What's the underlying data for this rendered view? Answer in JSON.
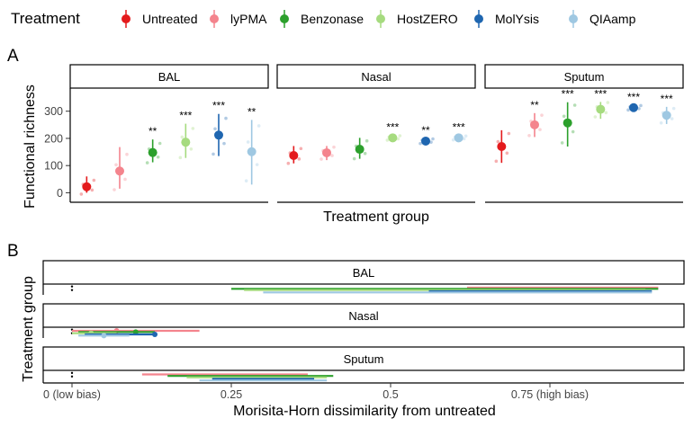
{
  "legend": {
    "title": "Treatment",
    "items": [
      {
        "label": "Untreated",
        "color": "#E41A1C"
      },
      {
        "label": "lyPMA",
        "color": "#F4848D"
      },
      {
        "label": "Benzonase",
        "color": "#2CA02C"
      },
      {
        "label": "HostZERO",
        "color": "#A6DB7F"
      },
      {
        "label": "MolYsis",
        "color": "#1F66B0"
      },
      {
        "label": "QIAamp",
        "color": "#9FC8E2"
      }
    ]
  },
  "panel_a": {
    "tag": "A",
    "ylabel": "Functional richness",
    "xlabel": "Treatment group"
  },
  "panel_b": {
    "tag": "B",
    "ylabel": "Treatment group",
    "xlabel": "Morisita-Horn dissimilarity from untreated"
  },
  "chart_data": [
    {
      "type": "scatter",
      "panel": "A",
      "facets": [
        "BAL",
        "Nasal",
        "Sputum"
      ],
      "categories": [
        "Untreated",
        "lyPMA",
        "Benzonase",
        "HostZERO",
        "MolYsis",
        "QIAamp"
      ],
      "ylabel": "Functional richness",
      "xlabel": "Treatment group",
      "yticks": [
        0,
        100,
        200,
        300
      ],
      "ylim": [
        -35,
        385
      ],
      "x_tick_labels_shown": false,
      "series": [
        {
          "facet": "BAL",
          "means": [
            22,
            80,
            148,
            186,
            212,
            151
          ],
          "lower": [
            0,
            15,
            112,
            128,
            135,
            30
          ],
          "upper": [
            60,
            168,
            196,
            254,
            290,
            268
          ],
          "signif": [
            "",
            "",
            "**",
            "***",
            "***",
            "**"
          ]
        },
        {
          "facet": "Nasal",
          "means": [
            137,
            147,
            160,
            202,
            190,
            202
          ],
          "lower": [
            108,
            120,
            125,
            193,
            180,
            195
          ],
          "upper": [
            172,
            172,
            202,
            212,
            200,
            212
          ],
          "signif": [
            "",
            "",
            "",
            "***",
            "**",
            "***"
          ]
        },
        {
          "facet": "Sputum",
          "means": [
            170,
            250,
            257,
            307,
            313,
            285
          ],
          "lower": [
            110,
            205,
            170,
            272,
            303,
            253
          ],
          "upper": [
            230,
            293,
            333,
            334,
            322,
            316
          ],
          "signif": [
            "",
            "**",
            "***",
            "***",
            "***",
            "***"
          ]
        }
      ]
    },
    {
      "type": "bar",
      "panel": "B",
      "facets": [
        "BAL",
        "Nasal",
        "Sputum"
      ],
      "categories": [
        "Untreated",
        "lyPMA",
        "Benzonase",
        "HostZERO",
        "MolYsis",
        "QIAamp"
      ],
      "xlabel": "Morisita-Horn dissimilarity from untreated",
      "ylabel": "Treatment group",
      "xlim": [
        0,
        1
      ],
      "xticks": [
        0,
        0.25,
        0.5,
        0.75
      ],
      "xtick_labels": [
        "0 (low bias)",
        "0.25",
        "0.5",
        "0.75 (high bias)"
      ],
      "series": [
        {
          "facet": "BAL",
          "means": [
            0,
            0.82,
            0.74,
            0.78,
            0.76,
            0.76
          ],
          "lower": [
            0,
            0.62,
            0.25,
            0.27,
            0.56,
            0.3
          ],
          "upper": [
            0,
            0.92,
            0.92,
            0.9,
            0.91,
            0.91
          ]
        },
        {
          "facet": "Nasal",
          "means": [
            0,
            0.07,
            0.1,
            0.03,
            0.13,
            0.05
          ],
          "lower": [
            0,
            0.0,
            0.01,
            0.0,
            0.02,
            0.01
          ],
          "upper": [
            0,
            0.2,
            0.13,
            0.07,
            0.13,
            0.09
          ]
        },
        {
          "facet": "Sputum",
          "means": [
            0,
            0.25,
            0.28,
            0.27,
            0.29,
            0.28
          ],
          "lower": [
            0,
            0.11,
            0.15,
            0.18,
            0.22,
            0.2
          ],
          "upper": [
            0,
            0.37,
            0.41,
            0.4,
            0.38,
            0.4
          ]
        }
      ]
    }
  ]
}
